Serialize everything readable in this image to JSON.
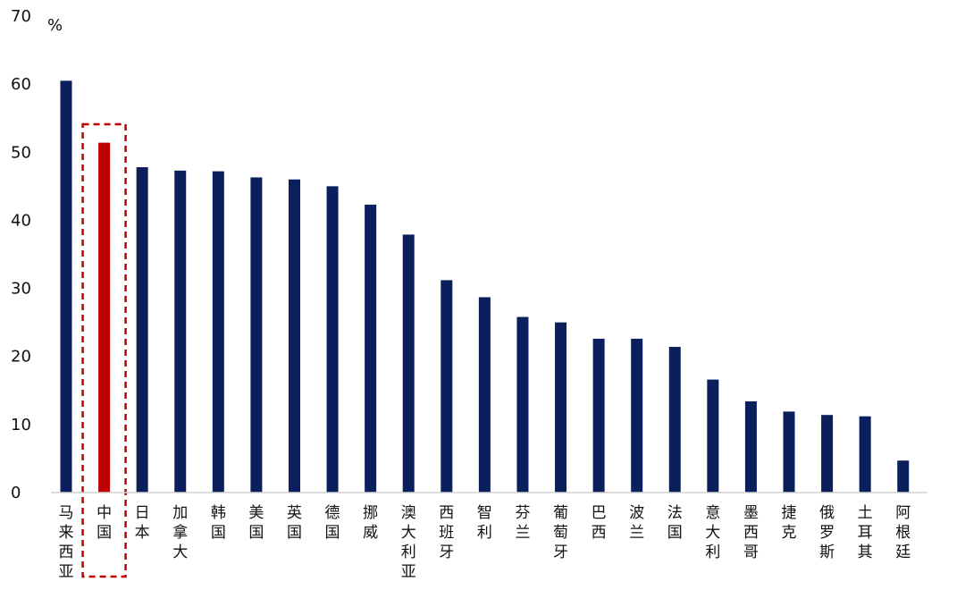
{
  "chart_data": {
    "type": "bar",
    "title": "",
    "xlabel": "",
    "ylabel": "",
    "unit_label": "%",
    "ylim": [
      0,
      70
    ],
    "yticks": [
      0,
      10,
      20,
      30,
      40,
      50,
      60,
      70
    ],
    "grid": false,
    "legend": "none",
    "categories": [
      "马来西亚",
      "中国",
      "日本",
      "加拿大",
      "韩国",
      "美国",
      "英国",
      "德国",
      "挪威",
      "澳大利亚",
      "西班牙",
      "智利",
      "芬兰",
      "葡萄牙",
      "巴西",
      "波兰",
      "法国",
      "意大利",
      "墨西哥",
      "捷克",
      "俄罗斯",
      "土耳其",
      "阿根廷"
    ],
    "values": [
      60.5,
      51.4,
      47.8,
      47.3,
      47.2,
      46.3,
      46.0,
      45.0,
      42.3,
      37.9,
      31.2,
      28.7,
      25.8,
      25.0,
      22.6,
      22.6,
      21.4,
      16.6,
      13.4,
      11.9,
      11.4,
      11.2,
      4.7
    ],
    "colors": {
      "default": "#0b1f5c",
      "highlight": "#c00000"
    },
    "highlight_category": "中国",
    "highlight_box_style": "red dashed"
  }
}
